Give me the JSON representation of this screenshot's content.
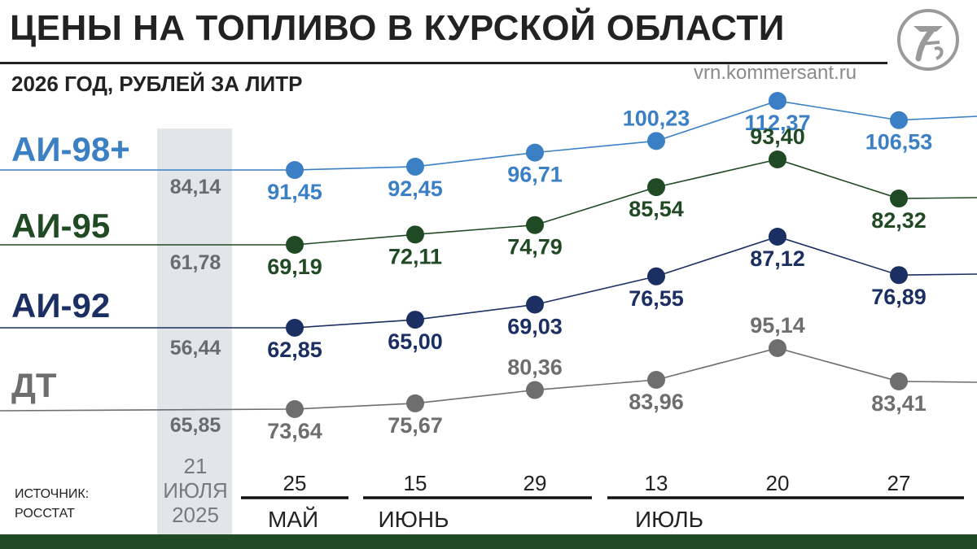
{
  "header": {
    "title": "ЦЕНЫ НА ТОПЛИВО В КУРСКОЙ ОБЛАСТИ",
    "subtitle": "2026 ГОД, РУБЛЕЙ ЗА ЛИТР",
    "site": "vrn.kommersant.ru",
    "logo": "kommersant-logo"
  },
  "source": {
    "line1": "ИСТОЧНИК:",
    "line2": "РОССТАТ"
  },
  "chart_data": {
    "type": "line",
    "title": "ЦЕНЫ НА ТОПЛИВО В КУРСКОЙ ОБЛАСТИ",
    "subtitle": "2026 ГОД, РУБЛЕЙ ЗА ЛИТР",
    "baseline": {
      "label": [
        "21",
        "ИЮЛЯ",
        "2025"
      ]
    },
    "x_days": [
      "25",
      "15",
      "29",
      "13",
      "20",
      "27"
    ],
    "months": [
      {
        "label": "МАЙ",
        "from": 0,
        "to": 0
      },
      {
        "label": "ИЮНЬ",
        "from": 1,
        "to": 2
      },
      {
        "label": "ИЮЛЬ",
        "from": 3,
        "to": 5
      }
    ],
    "series": [
      {
        "name": "АИ-98+",
        "color": "#3b7fc4",
        "baseline": "84,14",
        "values": [
          91.45,
          92.45,
          96.71,
          100.23,
          112.37,
          106.53
        ],
        "labels": [
          "91,45",
          "92,45",
          "96,71",
          "100,23",
          "112,37",
          "106,53"
        ]
      },
      {
        "name": "АИ-95",
        "color": "#1f4a23",
        "baseline": "61,78",
        "values": [
          69.19,
          72.11,
          74.79,
          85.54,
          93.4,
          82.32
        ],
        "labels": [
          "69,19",
          "72,11",
          "74,79",
          "85,54",
          "93,40",
          "82,32"
        ]
      },
      {
        "name": "АИ-92",
        "color": "#1b2f63",
        "baseline": "56,44",
        "values": [
          62.85,
          65.0,
          69.03,
          76.55,
          87.12,
          76.89
        ],
        "labels": [
          "62,85",
          "65,00",
          "69,03",
          "76,55",
          "87,12",
          "76,89"
        ]
      },
      {
        "name": "ДТ",
        "color": "#6e6e6e",
        "baseline": "65,85",
        "values": [
          73.64,
          75.67,
          80.36,
          83.96,
          95.14,
          83.41
        ],
        "labels": [
          "73,64",
          "75,67",
          "80,36",
          "83,96",
          "95,14",
          "83,41"
        ]
      }
    ],
    "grid": false
  }
}
